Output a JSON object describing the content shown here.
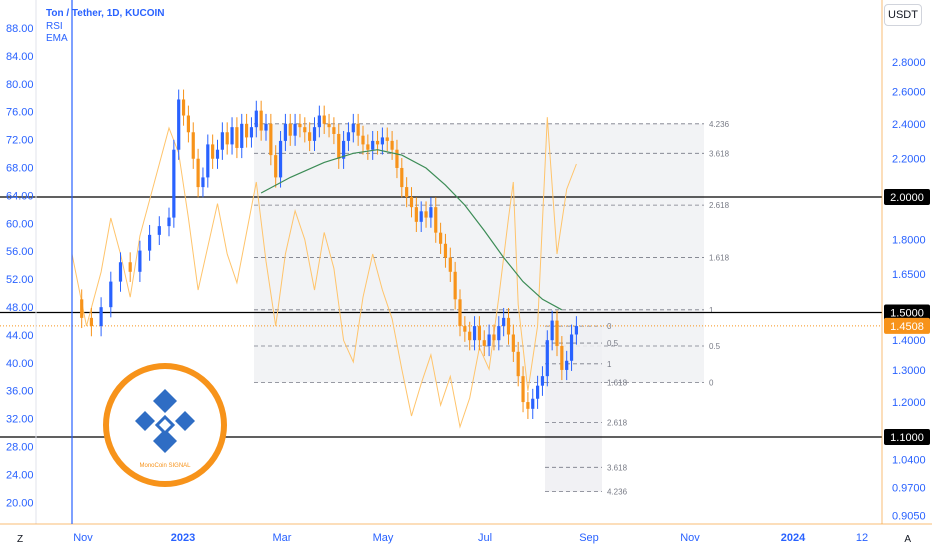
{
  "header": {
    "title": "Ton / Tether, 1D, KUCOIN",
    "indicator1": "RSI",
    "indicator2": "EMA"
  },
  "currency_label": "USDT",
  "corner_left": "Z",
  "corner_right": "A",
  "logo_text": "MonoCoin SIGNAL",
  "colors": {
    "accent_blue": "#2962ff",
    "price_orange": "#f7931a",
    "rsi_orange": "#ffc46b",
    "ema_green": "#3c8c56",
    "black_line": "#000000",
    "fib_fill": "#eeeff2"
  },
  "chart_data": {
    "type": "line",
    "title": "Ton / Tether, 1D, KUCOIN",
    "x_ticks": [
      "Nov",
      "2023",
      "Mar",
      "May",
      "Jul",
      "Sep",
      "Nov",
      "2024",
      "12"
    ],
    "left_axis_ticks": [
      "88.00",
      "84.00",
      "80.00",
      "76.00",
      "72.00",
      "68.00",
      "64.00",
      "60.00",
      "56.00",
      "52.00",
      "48.00",
      "44.00",
      "40.00",
      "36.00",
      "32.00",
      "28.00",
      "24.00",
      "20.00"
    ],
    "right_axis_ticks": [
      "2.8000",
      "2.6000",
      "2.4000",
      "2.2000",
      "2.0000",
      "1.8000",
      "1.6500",
      "1.5000",
      "1.4000",
      "1.3000",
      "1.2000",
      "1.1000",
      "1.0400",
      "0.9700",
      "0.9050"
    ],
    "right_axis_scale": "log",
    "horizontal_levels": [
      {
        "label": "2.0000",
        "value": 2.0
      },
      {
        "label": "1.5000",
        "value": 1.5
      },
      {
        "label": "1.1000",
        "value": 1.1
      }
    ],
    "last_price": {
      "label": "1.4508",
      "value": 1.4508
    },
    "fib_extension_large": [
      {
        "label": "4.236",
        "value": 2.4
      },
      {
        "label": "3.618",
        "value": 2.23
      },
      {
        "label": "2.618",
        "value": 1.96
      },
      {
        "label": "1.618",
        "value": 1.72
      },
      {
        "label": "1",
        "value": 1.51
      },
      {
        "label": "0.5",
        "value": 1.38
      },
      {
        "label": "0",
        "value": 1.26
      }
    ],
    "fib_extension_small": [
      {
        "label": "0",
        "value": 1.45
      },
      {
        "label": "0.5",
        "value": 1.39
      },
      {
        "label": "1",
        "value": 1.32
      },
      {
        "label": "1.618",
        "value": 1.26
      },
      {
        "label": "2.618",
        "value": 1.14
      },
      {
        "label": "3.618",
        "value": 1.02
      },
      {
        "label": "4.236",
        "value": 0.96
      }
    ],
    "price_series": {
      "name": "TON/USDT",
      "points": [
        [
          0,
          1.55
        ],
        [
          2,
          1.48
        ],
        [
          4,
          1.45
        ],
        [
          6,
          1.52
        ],
        [
          8,
          1.62
        ],
        [
          10,
          1.7
        ],
        [
          12,
          1.66
        ],
        [
          14,
          1.75
        ],
        [
          16,
          1.82
        ],
        [
          18,
          1.86
        ],
        [
          20,
          1.9
        ],
        [
          21,
          2.25
        ],
        [
          22,
          2.55
        ],
        [
          23,
          2.45
        ],
        [
          24,
          2.35
        ],
        [
          25,
          2.2
        ],
        [
          26,
          2.05
        ],
        [
          27,
          2.1
        ],
        [
          28,
          2.28
        ],
        [
          29,
          2.2
        ],
        [
          30,
          2.25
        ],
        [
          31,
          2.35
        ],
        [
          32,
          2.28
        ],
        [
          33,
          2.38
        ],
        [
          34,
          2.26
        ],
        [
          35,
          2.4
        ],
        [
          36,
          2.32
        ],
        [
          37,
          2.38
        ],
        [
          38,
          2.48
        ],
        [
          39,
          2.36
        ],
        [
          40,
          2.4
        ],
        [
          41,
          2.22
        ],
        [
          42,
          2.1
        ],
        [
          43,
          2.3
        ],
        [
          44,
          2.4
        ],
        [
          45,
          2.33
        ],
        [
          46,
          2.4
        ],
        [
          47,
          2.38
        ],
        [
          48,
          2.35
        ],
        [
          49,
          2.3
        ],
        [
          50,
          2.38
        ],
        [
          51,
          2.45
        ],
        [
          52,
          2.4
        ],
        [
          53,
          2.38
        ],
        [
          54,
          2.34
        ],
        [
          55,
          2.2
        ],
        [
          56,
          2.3
        ],
        [
          57,
          2.35
        ],
        [
          58,
          2.4
        ],
        [
          59,
          2.33
        ],
        [
          60,
          2.28
        ],
        [
          61,
          2.25
        ],
        [
          62,
          2.3
        ],
        [
          63,
          2.28
        ],
        [
          64,
          2.32
        ],
        [
          65,
          2.3
        ],
        [
          66,
          2.25
        ],
        [
          67,
          2.15
        ],
        [
          68,
          2.05
        ],
        [
          69,
          2.0
        ],
        [
          70,
          1.95
        ],
        [
          71,
          1.88
        ],
        [
          72,
          1.93
        ],
        [
          73,
          1.9
        ],
        [
          74,
          1.95
        ],
        [
          75,
          1.83
        ],
        [
          76,
          1.78
        ],
        [
          77,
          1.72
        ],
        [
          78,
          1.66
        ],
        [
          79,
          1.55
        ],
        [
          80,
          1.45
        ],
        [
          81,
          1.43
        ],
        [
          82,
          1.4
        ],
        [
          83,
          1.45
        ],
        [
          84,
          1.4
        ],
        [
          85,
          1.38
        ],
        [
          86,
          1.42
        ],
        [
          87,
          1.4
        ],
        [
          88,
          1.45
        ],
        [
          89,
          1.48
        ],
        [
          90,
          1.42
        ],
        [
          91,
          1.36
        ],
        [
          92,
          1.28
        ],
        [
          93,
          1.2
        ],
        [
          94,
          1.18
        ],
        [
          95,
          1.21
        ],
        [
          96,
          1.25
        ],
        [
          97,
          1.28
        ],
        [
          98,
          1.4
        ],
        [
          99,
          1.47
        ],
        [
          100,
          1.38
        ],
        [
          101,
          1.3
        ],
        [
          102,
          1.33
        ],
        [
          103,
          1.42
        ],
        [
          104,
          1.45
        ]
      ]
    },
    "ema_series": {
      "name": "EMA",
      "points": [
        [
          39,
          2.02
        ],
        [
          45,
          2.1
        ],
        [
          52,
          2.18
        ],
        [
          58,
          2.23
        ],
        [
          63,
          2.25
        ],
        [
          68,
          2.22
        ],
        [
          73,
          2.15
        ],
        [
          77,
          2.06
        ],
        [
          81,
          1.96
        ],
        [
          85,
          1.84
        ],
        [
          89,
          1.72
        ],
        [
          93,
          1.62
        ],
        [
          97,
          1.55
        ],
        [
          101,
          1.51
        ]
      ]
    },
    "rsi_series": {
      "name": "RSI",
      "points": [
        [
          0,
          60
        ],
        [
          3,
          40
        ],
        [
          6,
          55
        ],
        [
          8,
          70
        ],
        [
          10,
          60
        ],
        [
          12,
          48
        ],
        [
          14,
          65
        ],
        [
          16,
          75
        ],
        [
          18,
          85
        ],
        [
          20,
          95
        ],
        [
          22,
          88
        ],
        [
          24,
          70
        ],
        [
          26,
          50
        ],
        [
          28,
          62
        ],
        [
          30,
          74
        ],
        [
          32,
          60
        ],
        [
          34,
          52
        ],
        [
          36,
          66
        ],
        [
          38,
          80
        ],
        [
          40,
          58
        ],
        [
          42,
          40
        ],
        [
          44,
          60
        ],
        [
          46,
          72
        ],
        [
          48,
          64
        ],
        [
          50,
          50
        ],
        [
          52,
          66
        ],
        [
          54,
          56
        ],
        [
          56,
          36
        ],
        [
          58,
          30
        ],
        [
          60,
          48
        ],
        [
          62,
          60
        ],
        [
          64,
          50
        ],
        [
          66,
          42
        ],
        [
          68,
          28
        ],
        [
          70,
          15
        ],
        [
          72,
          24
        ],
        [
          74,
          32
        ],
        [
          76,
          18
        ],
        [
          78,
          26
        ],
        [
          80,
          12
        ],
        [
          82,
          20
        ],
        [
          84,
          34
        ],
        [
          86,
          28
        ],
        [
          88,
          48
        ],
        [
          90,
          70
        ],
        [
          91,
          80
        ],
        [
          92,
          46
        ],
        [
          94,
          22
        ],
        [
          96,
          40
        ],
        [
          98,
          98
        ],
        [
          100,
          60
        ],
        [
          102,
          78
        ],
        [
          104,
          85
        ]
      ]
    }
  }
}
